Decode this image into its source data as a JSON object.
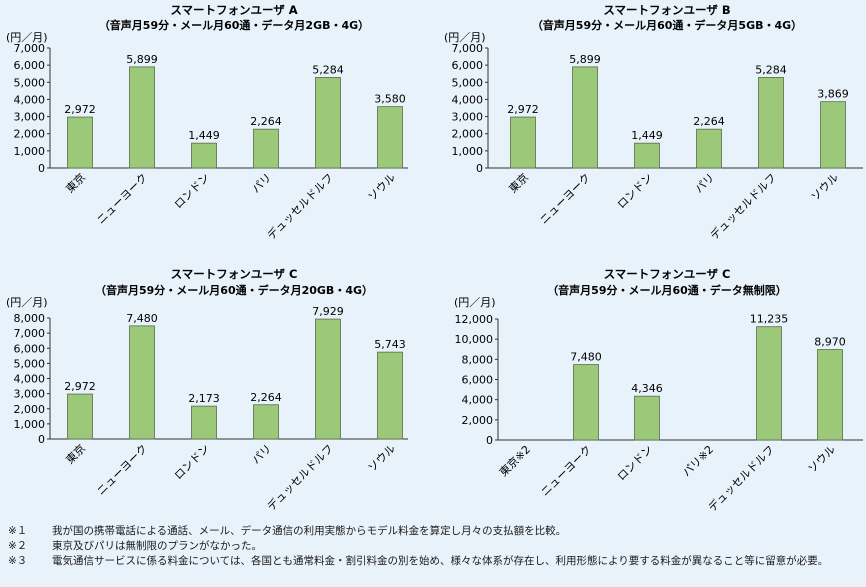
{
  "chart_data": [
    {
      "type": "bar",
      "title": "スマートフォンユーザ A",
      "subtitle": "（音声月59分・メール月60通・データ月2GB・4G）",
      "unit_label": "(円／月)",
      "categories": [
        "東京",
        "ニューヨーク",
        "ロンドン",
        "パリ",
        "デュッセルドルフ",
        "ソウル"
      ],
      "values": [
        2972,
        5899,
        1449,
        2264,
        5284,
        3580
      ],
      "value_labels": [
        "2,972",
        "5,899",
        "1,449",
        "2,264",
        "5,284",
        "3,580"
      ],
      "yticks": [
        "0",
        "1,000",
        "2,000",
        "3,000",
        "4,000",
        "5,000",
        "6,000",
        "7,000"
      ],
      "ylim": [
        0,
        7000
      ],
      "bar_color": "#9cc879",
      "grid": false
    },
    {
      "type": "bar",
      "title": "スマートフォンユーザ B",
      "subtitle": "（音声月59分・メール月60通・データ月5GB・4G）",
      "unit_label": "(円／月)",
      "categories": [
        "東京",
        "ニューヨーク",
        "ロンドン",
        "パリ",
        "デュッセルドルフ",
        "ソウル"
      ],
      "values": [
        2972,
        5899,
        1449,
        2264,
        5284,
        3869
      ],
      "value_labels": [
        "2,972",
        "5,899",
        "1,449",
        "2,264",
        "5,284",
        "3,869"
      ],
      "yticks": [
        "0",
        "1,000",
        "2,000",
        "3,000",
        "4,000",
        "5,000",
        "6,000",
        "7,000"
      ],
      "ylim": [
        0,
        7000
      ],
      "bar_color": "#9cc879",
      "grid": false
    },
    {
      "type": "bar",
      "title": "スマートフォンユーザ C",
      "subtitle": "（音声月59分・メール月60通・データ月20GB・4G）",
      "unit_label": "(円／月)",
      "categories": [
        "東京",
        "ニューヨーク",
        "ロンドン",
        "パリ",
        "デュッセルドルフ",
        "ソウル"
      ],
      "values": [
        2972,
        7480,
        2173,
        2264,
        7929,
        5743
      ],
      "value_labels": [
        "2,972",
        "7,480",
        "2,173",
        "2,264",
        "7,929",
        "5,743"
      ],
      "yticks": [
        "0",
        "1,000",
        "2,000",
        "3,000",
        "4,000",
        "5,000",
        "6,000",
        "7,000",
        "8,000"
      ],
      "ylim": [
        0,
        8000
      ],
      "bar_color": "#9cc879",
      "grid": false
    },
    {
      "type": "bar",
      "title": "スマートフォンユーザ C",
      "subtitle": "（音声月59分・メール月60通・データ無制限）",
      "unit_label": "(円／月)",
      "categories": [
        "東京※2",
        "ニューヨーク",
        "ロンドン",
        "パリ※2",
        "デュッセルドルフ",
        "ソウル"
      ],
      "values": [
        null,
        7480,
        4346,
        null,
        11235,
        8970
      ],
      "value_labels": [
        "",
        "7,480",
        "4,346",
        "",
        "11,235",
        "8,970"
      ],
      "yticks": [
        "0",
        "2,000",
        "4,000",
        "6,000",
        "8,000",
        "10,000",
        "12,000"
      ],
      "ylim": [
        0,
        12000
      ],
      "bar_color": "#9cc879",
      "grid": false
    }
  ],
  "notes": [
    {
      "mark": "※１",
      "text": "我が国の携帯電話による通話、メール、データ通信の利用実態からモデル料金を算定し月々の支払額を比較。"
    },
    {
      "mark": "※２",
      "text": "東京及びパリは無制限のプランがなかった。"
    },
    {
      "mark": "※３",
      "text": "電気通信サービスに係る料金については、各国とも通常料金・割引料金の別を始め、様々な体系が存在し、利用形態により要する料金が異なること等に留意が必要。"
    }
  ]
}
